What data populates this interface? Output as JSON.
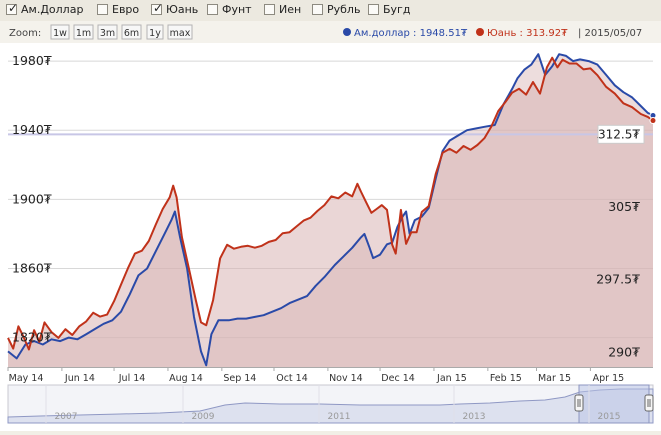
{
  "currency_checkboxes": [
    {
      "label": "Ам.Доллар",
      "checked": true
    },
    {
      "label": "Евро",
      "checked": false
    },
    {
      "label": "Юань",
      "checked": true
    },
    {
      "label": "Фунт",
      "checked": false
    },
    {
      "label": "Иен",
      "checked": false
    },
    {
      "label": "Рубль",
      "checked": false
    },
    {
      "label": "Бугд",
      "checked": false
    }
  ],
  "zoom": {
    "label": "Zoom:",
    "buttons": [
      "1w",
      "1m",
      "3m",
      "6m",
      "1y",
      "max"
    ]
  },
  "legend": {
    "usd_label": "Ам.доллар : 1948.51₮",
    "cny_label": "Юань : 313.92₮",
    "date": "| 2015/05/07"
  },
  "colors": {
    "usd": "#2a4aa8",
    "cny": "#c0321a",
    "fill": "#d8b4b4",
    "grid": "#d8d8d8",
    "crosshair": "#c8c6e6"
  },
  "navigator": {
    "years": [
      "2007",
      "2009",
      "2011",
      "2013",
      "2015"
    ]
  },
  "chart_data": {
    "type": "line",
    "x_tick_labels": [
      "May 14",
      "Jun 14",
      "Jul 14",
      "Aug 14",
      "Sep 14",
      "Oct 14",
      "Nov 14",
      "Dec 14",
      "Jan 15",
      "Feb 15",
      "Mar 15",
      "Apr 15"
    ],
    "left_axis": {
      "ticks": [
        "1820₮",
        "1860₮",
        "1900₮",
        "1940₮",
        "1980₮"
      ],
      "min": 1803,
      "max": 1987
    },
    "right_axis": {
      "ticks": [
        "290₮",
        "297.5₮",
        "305₮",
        "312.5₮"
      ],
      "min": 288.5,
      "max": 321.3
    },
    "series": [
      {
        "name": "Ам.доллар",
        "axis": "left",
        "points": [
          [
            "2014-05-01",
            1812
          ],
          [
            "2014-05-06",
            1808
          ],
          [
            "2014-05-11",
            1816
          ],
          [
            "2014-05-16",
            1818
          ],
          [
            "2014-05-21",
            1816
          ],
          [
            "2014-05-26",
            1819
          ],
          [
            "2014-05-31",
            1818
          ],
          [
            "2014-06-05",
            1820
          ],
          [
            "2014-06-10",
            1819
          ],
          [
            "2014-06-15",
            1822
          ],
          [
            "2014-06-20",
            1825
          ],
          [
            "2014-06-25",
            1828
          ],
          [
            "2014-06-30",
            1830
          ],
          [
            "2014-07-05",
            1835
          ],
          [
            "2014-07-10",
            1845
          ],
          [
            "2014-07-15",
            1856
          ],
          [
            "2014-07-20",
            1860
          ],
          [
            "2014-07-25",
            1870
          ],
          [
            "2014-07-30",
            1880
          ],
          [
            "2014-08-03",
            1888
          ],
          [
            "2014-08-05",
            1893
          ],
          [
            "2014-08-08",
            1878
          ],
          [
            "2014-08-12",
            1860
          ],
          [
            "2014-08-16",
            1832
          ],
          [
            "2014-08-20",
            1812
          ],
          [
            "2014-08-23",
            1804
          ],
          [
            "2014-08-26",
            1822
          ],
          [
            "2014-08-30",
            1830
          ],
          [
            "2014-09-05",
            1830
          ],
          [
            "2014-09-10",
            1831
          ],
          [
            "2014-09-15",
            1831
          ],
          [
            "2014-09-20",
            1832
          ],
          [
            "2014-09-25",
            1833
          ],
          [
            "2014-09-30",
            1835
          ],
          [
            "2014-10-05",
            1837
          ],
          [
            "2014-10-10",
            1840
          ],
          [
            "2014-10-15",
            1842
          ],
          [
            "2014-10-20",
            1844
          ],
          [
            "2014-10-25",
            1850
          ],
          [
            "2014-10-30",
            1855
          ],
          [
            "2014-11-05",
            1862
          ],
          [
            "2014-11-10",
            1867
          ],
          [
            "2014-11-15",
            1872
          ],
          [
            "2014-11-20",
            1878
          ],
          [
            "2014-11-22",
            1880
          ],
          [
            "2014-11-25",
            1872
          ],
          [
            "2014-11-27",
            1866
          ],
          [
            "2014-12-01",
            1868
          ],
          [
            "2014-12-05",
            1874
          ],
          [
            "2014-12-08",
            1875
          ],
          [
            "2014-12-11",
            1884
          ],
          [
            "2014-12-14",
            1890
          ],
          [
            "2014-12-16",
            1893
          ],
          [
            "2014-12-18",
            1880
          ],
          [
            "2014-12-21",
            1888
          ],
          [
            "2014-12-25",
            1890
          ],
          [
            "2014-12-29",
            1895
          ],
          [
            "2015-01-02",
            1912
          ],
          [
            "2015-01-06",
            1928
          ],
          [
            "2015-01-10",
            1934
          ],
          [
            "2015-01-15",
            1937
          ],
          [
            "2015-01-20",
            1940
          ],
          [
            "2015-01-25",
            1941
          ],
          [
            "2015-01-30",
            1942
          ],
          [
            "2015-02-05",
            1943
          ],
          [
            "2015-02-10",
            1955
          ],
          [
            "2015-02-15",
            1964
          ],
          [
            "2015-02-18",
            1970
          ],
          [
            "2015-02-22",
            1975
          ],
          [
            "2015-02-26",
            1978
          ],
          [
            "2015-03-02",
            1984
          ],
          [
            "2015-03-06",
            1972
          ],
          [
            "2015-03-10",
            1977
          ],
          [
            "2015-03-14",
            1984
          ],
          [
            "2015-03-18",
            1983
          ],
          [
            "2015-03-22",
            1980
          ],
          [
            "2015-03-26",
            1981
          ],
          [
            "2015-03-31",
            1980
          ],
          [
            "2015-04-05",
            1978
          ],
          [
            "2015-04-10",
            1972
          ],
          [
            "2015-04-15",
            1966
          ],
          [
            "2015-04-20",
            1962
          ],
          [
            "2015-04-25",
            1959
          ],
          [
            "2015-04-30",
            1954
          ],
          [
            "2015-05-04",
            1950
          ],
          [
            "2015-05-07",
            1948.51
          ]
        ]
      },
      {
        "name": "Юань",
        "axis": "right",
        "points": [
          [
            "2014-05-01",
            291.5
          ],
          [
            "2014-05-04",
            290.4
          ],
          [
            "2014-05-07",
            292.7
          ],
          [
            "2014-05-10",
            291.6
          ],
          [
            "2014-05-13",
            290.3
          ],
          [
            "2014-05-16",
            292.3
          ],
          [
            "2014-05-19",
            291.1
          ],
          [
            "2014-05-22",
            293.1
          ],
          [
            "2014-05-26",
            292.1
          ],
          [
            "2014-05-30",
            291.5
          ],
          [
            "2014-06-03",
            292.4
          ],
          [
            "2014-06-07",
            291.8
          ],
          [
            "2014-06-11",
            292.7
          ],
          [
            "2014-06-15",
            293.2
          ],
          [
            "2014-06-19",
            294.1
          ],
          [
            "2014-06-23",
            293.7
          ],
          [
            "2014-06-27",
            293.9
          ],
          [
            "2014-07-01",
            295.3
          ],
          [
            "2014-07-05",
            297.0
          ],
          [
            "2014-07-09",
            298.7
          ],
          [
            "2014-07-13",
            300.2
          ],
          [
            "2014-07-17",
            300.5
          ],
          [
            "2014-07-21",
            301.5
          ],
          [
            "2014-07-25",
            303.2
          ],
          [
            "2014-07-29",
            304.8
          ],
          [
            "2014-08-02",
            306.0
          ],
          [
            "2014-08-04",
            307.2
          ],
          [
            "2014-08-06",
            306.0
          ],
          [
            "2014-08-09",
            301.9
          ],
          [
            "2014-08-13",
            298.7
          ],
          [
            "2014-08-17",
            295.4
          ],
          [
            "2014-08-20",
            293.1
          ],
          [
            "2014-08-23",
            292.8
          ],
          [
            "2014-08-27",
            295.4
          ],
          [
            "2014-08-31",
            299.7
          ],
          [
            "2014-09-04",
            301.1
          ],
          [
            "2014-09-08",
            300.7
          ],
          [
            "2014-09-12",
            300.9
          ],
          [
            "2014-09-16",
            301.0
          ],
          [
            "2014-09-20",
            300.8
          ],
          [
            "2014-09-24",
            301.0
          ],
          [
            "2014-09-28",
            301.4
          ],
          [
            "2014-10-02",
            301.6
          ],
          [
            "2014-10-06",
            302.3
          ],
          [
            "2014-10-10",
            302.4
          ],
          [
            "2014-10-14",
            303.0
          ],
          [
            "2014-10-18",
            303.6
          ],
          [
            "2014-10-22",
            303.9
          ],
          [
            "2014-10-26",
            304.6
          ],
          [
            "2014-10-30",
            305.2
          ],
          [
            "2014-11-03",
            306.1
          ],
          [
            "2014-11-07",
            305.9
          ],
          [
            "2014-11-11",
            306.5
          ],
          [
            "2014-11-15",
            306.1
          ],
          [
            "2014-11-18",
            307.4
          ],
          [
            "2014-11-20",
            306.6
          ],
          [
            "2014-11-23",
            305.5
          ],
          [
            "2014-11-26",
            304.4
          ],
          [
            "2014-11-29",
            304.8
          ],
          [
            "2014-12-02",
            305.2
          ],
          [
            "2014-12-05",
            304.7
          ],
          [
            "2014-12-08",
            301.1
          ],
          [
            "2014-12-10",
            300.2
          ],
          [
            "2014-12-13",
            304.7
          ],
          [
            "2014-12-16",
            301.2
          ],
          [
            "2014-12-19",
            302.4
          ],
          [
            "2014-12-22",
            302.4
          ],
          [
            "2014-12-25",
            304.5
          ],
          [
            "2014-12-29",
            305.1
          ],
          [
            "2015-01-02",
            308.4
          ],
          [
            "2015-01-06",
            310.6
          ],
          [
            "2015-01-10",
            311.0
          ],
          [
            "2015-01-14",
            310.6
          ],
          [
            "2015-01-18",
            311.3
          ],
          [
            "2015-01-22",
            310.9
          ],
          [
            "2015-01-26",
            311.4
          ],
          [
            "2015-01-30",
            312.1
          ],
          [
            "2015-02-03",
            313.3
          ],
          [
            "2015-02-07",
            314.9
          ],
          [
            "2015-02-11",
            315.8
          ],
          [
            "2015-02-15",
            316.8
          ],
          [
            "2015-02-19",
            317.2
          ],
          [
            "2015-02-23",
            316.6
          ],
          [
            "2015-02-27",
            317.9
          ],
          [
            "2015-03-03",
            316.7
          ],
          [
            "2015-03-07",
            319.4
          ],
          [
            "2015-03-10",
            320.4
          ],
          [
            "2015-03-13",
            319.4
          ],
          [
            "2015-03-16",
            320.2
          ],
          [
            "2015-03-20",
            319.8
          ],
          [
            "2015-03-24",
            319.8
          ],
          [
            "2015-03-28",
            319.2
          ],
          [
            "2015-04-01",
            319.3
          ],
          [
            "2015-04-05",
            318.6
          ],
          [
            "2015-04-10",
            317.4
          ],
          [
            "2015-04-15",
            316.7
          ],
          [
            "2015-04-20",
            315.7
          ],
          [
            "2015-04-25",
            315.3
          ],
          [
            "2015-04-30",
            314.6
          ],
          [
            "2015-05-04",
            314.3
          ],
          [
            "2015-05-07",
            313.92
          ]
        ]
      }
    ],
    "crosshair_label": "312.5₮",
    "grid": true
  }
}
